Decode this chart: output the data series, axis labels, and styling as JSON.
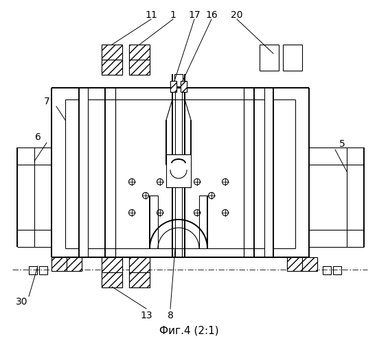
{
  "title": "Фиг.4 (2:1)",
  "background": "#ffffff",
  "figsize": [
    5.49,
    5.0
  ],
  "dpi": 100
}
